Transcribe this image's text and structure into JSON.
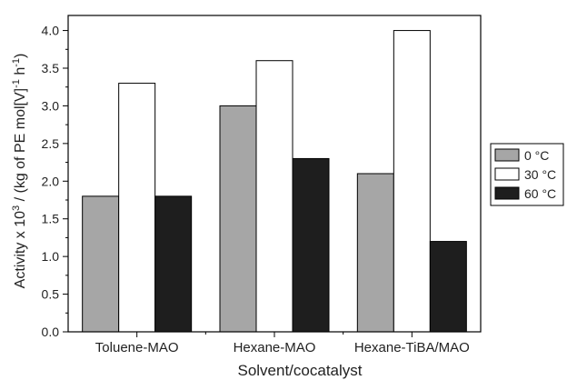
{
  "chart_data": {
    "type": "bar",
    "xlabel": "Solvent/cocatalyst",
    "ylabel": {
      "main": "Activity x 10",
      "exp": "3",
      "unit_open": " / (kg of PE mol[V]",
      "unit_exp1": "-1",
      "unit_mid": " h",
      "unit_exp2": "-1",
      "unit_close": ")"
    },
    "categories": [
      "Toluene-MAO",
      "Hexane-MAO",
      "Hexane-TiBA/MAO"
    ],
    "series": [
      {
        "name": "0 °C",
        "values": [
          1.8,
          3.0,
          2.1
        ],
        "color": "#a6a6a6"
      },
      {
        "name": "30 °C",
        "values": [
          3.3,
          3.6,
          4.0
        ],
        "color": "#ffffff"
      },
      {
        "name": "60 °C",
        "values": [
          1.8,
          2.3,
          1.2
        ],
        "color": "#1e1e1e"
      }
    ],
    "ylim": [
      0.0,
      4.2
    ],
    "yticks": [
      "0.0",
      "0.5",
      "1.0",
      "1.5",
      "2.0",
      "2.5",
      "3.0",
      "3.5",
      "4.0"
    ],
    "legend_position": "right",
    "grid": false
  }
}
